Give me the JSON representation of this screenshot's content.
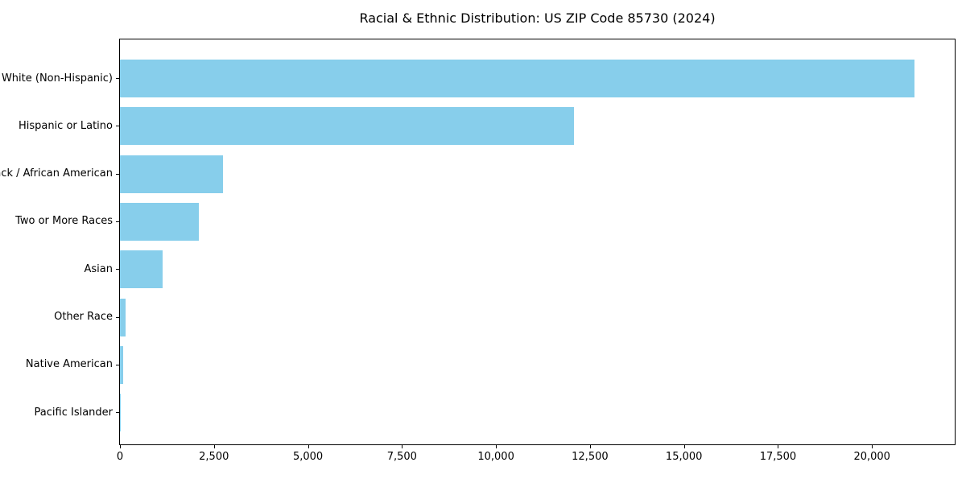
{
  "title": "Racial & Ethnic Distribution: US ZIP Code 85730 (2024)",
  "chart_data": {
    "type": "bar",
    "orientation": "horizontal",
    "title": "Racial & Ethnic Distribution: US ZIP Code 85730 (2024)",
    "categories": [
      "White (Non-Hispanic)",
      "Hispanic or Latino",
      "Black / African American",
      "Two or More Races",
      "Asian",
      "Other Race",
      "Native American",
      "Pacific Islander"
    ],
    "values": [
      21130,
      12075,
      2750,
      2090,
      1145,
      150,
      80,
      15
    ],
    "xlabel": "",
    "ylabel": "",
    "xlim": [
      0,
      22200
    ],
    "xticks": [
      0,
      2500,
      5000,
      7500,
      10000,
      12500,
      15000,
      17500,
      20000
    ],
    "xtick_labels": [
      "0",
      "2,500",
      "5,000",
      "7,500",
      "10,000",
      "12,500",
      "15,000",
      "17,500",
      "20,000"
    ],
    "bar_color": "#87CEEB",
    "spine_color": "#000000",
    "text_color": "#000000",
    "grid": false,
    "legend": null
  }
}
